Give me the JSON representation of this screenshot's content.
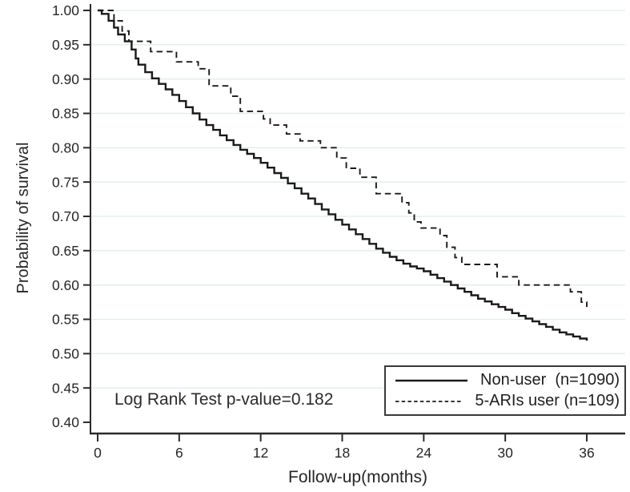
{
  "chart_data": {
    "type": "line",
    "subtype": "kaplan-meier-survival",
    "title": "",
    "xlabel": "Follow-up(months)",
    "ylabel": "Probability of survival",
    "annotation": "Log Rank Test p-value=0.182",
    "xlim": [
      0,
      36
    ],
    "ylim": [
      0.4,
      1.0
    ],
    "x_ticks": [
      0,
      6,
      12,
      18,
      24,
      30,
      36
    ],
    "x_tick_labels": [
      "0",
      "6",
      "12",
      "18",
      "24",
      "30",
      "36"
    ],
    "y_ticks": [
      0.4,
      0.45,
      0.5,
      0.55,
      0.6,
      0.65,
      0.7,
      0.75,
      0.8,
      0.85,
      0.9,
      0.95,
      1.0
    ],
    "y_tick_labels": [
      "0.40",
      "0.45",
      "0.50",
      "0.55",
      "0.60",
      "0.65",
      "0.70",
      "0.75",
      "0.80",
      "0.85",
      "0.90",
      "0.95",
      "1.00"
    ],
    "grid": "horizontal",
    "grid_color": "#dfecef",
    "curve_color": "#1a1a1a",
    "axis_color": "#2b2b2b",
    "legend": {
      "position": "bottom-right",
      "entries": [
        {
          "label": "Non-user  (n=1090)",
          "style": "solid"
        },
        {
          "label": "5-ARIs user (n=109)",
          "style": "dashed"
        }
      ]
    },
    "series": [
      {
        "id": "non-user",
        "name": "Non-user  (n=1090)",
        "style": "solid",
        "interpolation": "step-after",
        "points": [
          [
            0,
            1.0
          ],
          [
            0.3,
            0.995
          ],
          [
            0.8,
            0.985
          ],
          [
            1.2,
            0.975
          ],
          [
            1.5,
            0.965
          ],
          [
            2,
            0.955
          ],
          [
            2.5,
            0.943
          ],
          [
            2.8,
            0.93
          ],
          [
            3,
            0.921
          ],
          [
            3.5,
            0.91
          ],
          [
            4,
            0.901
          ],
          [
            4.5,
            0.893
          ],
          [
            5,
            0.885
          ],
          [
            5.5,
            0.877
          ],
          [
            6,
            0.868
          ],
          [
            6.5,
            0.859
          ],
          [
            7,
            0.85
          ],
          [
            7.5,
            0.841
          ],
          [
            8,
            0.833
          ],
          [
            8.5,
            0.826
          ],
          [
            9,
            0.818
          ],
          [
            9.5,
            0.811
          ],
          [
            10,
            0.804
          ],
          [
            10.5,
            0.797
          ],
          [
            11,
            0.791
          ],
          [
            11.5,
            0.785
          ],
          [
            12,
            0.778
          ],
          [
            12.5,
            0.771
          ],
          [
            13,
            0.763
          ],
          [
            13.5,
            0.756
          ],
          [
            14,
            0.748
          ],
          [
            14.5,
            0.741
          ],
          [
            15,
            0.733
          ],
          [
            15.5,
            0.726
          ],
          [
            16,
            0.718
          ],
          [
            16.5,
            0.71
          ],
          [
            17,
            0.703
          ],
          [
            17.5,
            0.695
          ],
          [
            18,
            0.688
          ],
          [
            18.5,
            0.681
          ],
          [
            19,
            0.674
          ],
          [
            19.5,
            0.667
          ],
          [
            20,
            0.66
          ],
          [
            20.5,
            0.653
          ],
          [
            21,
            0.647
          ],
          [
            21.5,
            0.641
          ],
          [
            22,
            0.636
          ],
          [
            22.5,
            0.631
          ],
          [
            23,
            0.627
          ],
          [
            23.5,
            0.624
          ],
          [
            24,
            0.62
          ],
          [
            24.5,
            0.615
          ],
          [
            25,
            0.61
          ],
          [
            25.5,
            0.605
          ],
          [
            26,
            0.6
          ],
          [
            26.5,
            0.595
          ],
          [
            27,
            0.59
          ],
          [
            27.5,
            0.585
          ],
          [
            28,
            0.58
          ],
          [
            28.5,
            0.576
          ],
          [
            29,
            0.572
          ],
          [
            29.5,
            0.568
          ],
          [
            30,
            0.564
          ],
          [
            30.5,
            0.559
          ],
          [
            31,
            0.555
          ],
          [
            31.5,
            0.551
          ],
          [
            32,
            0.547
          ],
          [
            32.5,
            0.543
          ],
          [
            33,
            0.539
          ],
          [
            33.5,
            0.535
          ],
          [
            34,
            0.531
          ],
          [
            34.5,
            0.528
          ],
          [
            35,
            0.525
          ],
          [
            35.5,
            0.522
          ],
          [
            36,
            0.519
          ]
        ]
      },
      {
        "id": "5-aris-user",
        "name": "5-ARIs user (n=109)",
        "style": "dashed",
        "interpolation": "step-after",
        "points": [
          [
            0,
            1.0
          ],
          [
            1.2,
            0.985
          ],
          [
            1.8,
            0.97
          ],
          [
            2.3,
            0.955
          ],
          [
            3.9,
            0.94
          ],
          [
            5.8,
            0.925
          ],
          [
            7.4,
            0.915
          ],
          [
            8.2,
            0.89
          ],
          [
            9.8,
            0.875
          ],
          [
            10.5,
            0.853
          ],
          [
            12.2,
            0.842
          ],
          [
            12.7,
            0.833
          ],
          [
            13.9,
            0.82
          ],
          [
            14.9,
            0.81
          ],
          [
            16.4,
            0.8
          ],
          [
            17.6,
            0.785
          ],
          [
            18.3,
            0.77
          ],
          [
            19.3,
            0.757
          ],
          [
            20.5,
            0.733
          ],
          [
            22.4,
            0.72
          ],
          [
            22.9,
            0.705
          ],
          [
            23.3,
            0.692
          ],
          [
            23.8,
            0.683
          ],
          [
            25.2,
            0.672
          ],
          [
            25.7,
            0.655
          ],
          [
            26.3,
            0.64
          ],
          [
            26.8,
            0.63
          ],
          [
            29.4,
            0.612
          ],
          [
            31,
            0.6
          ],
          [
            34.8,
            0.59
          ],
          [
            35.6,
            0.575
          ],
          [
            36,
            0.568
          ]
        ]
      }
    ]
  }
}
